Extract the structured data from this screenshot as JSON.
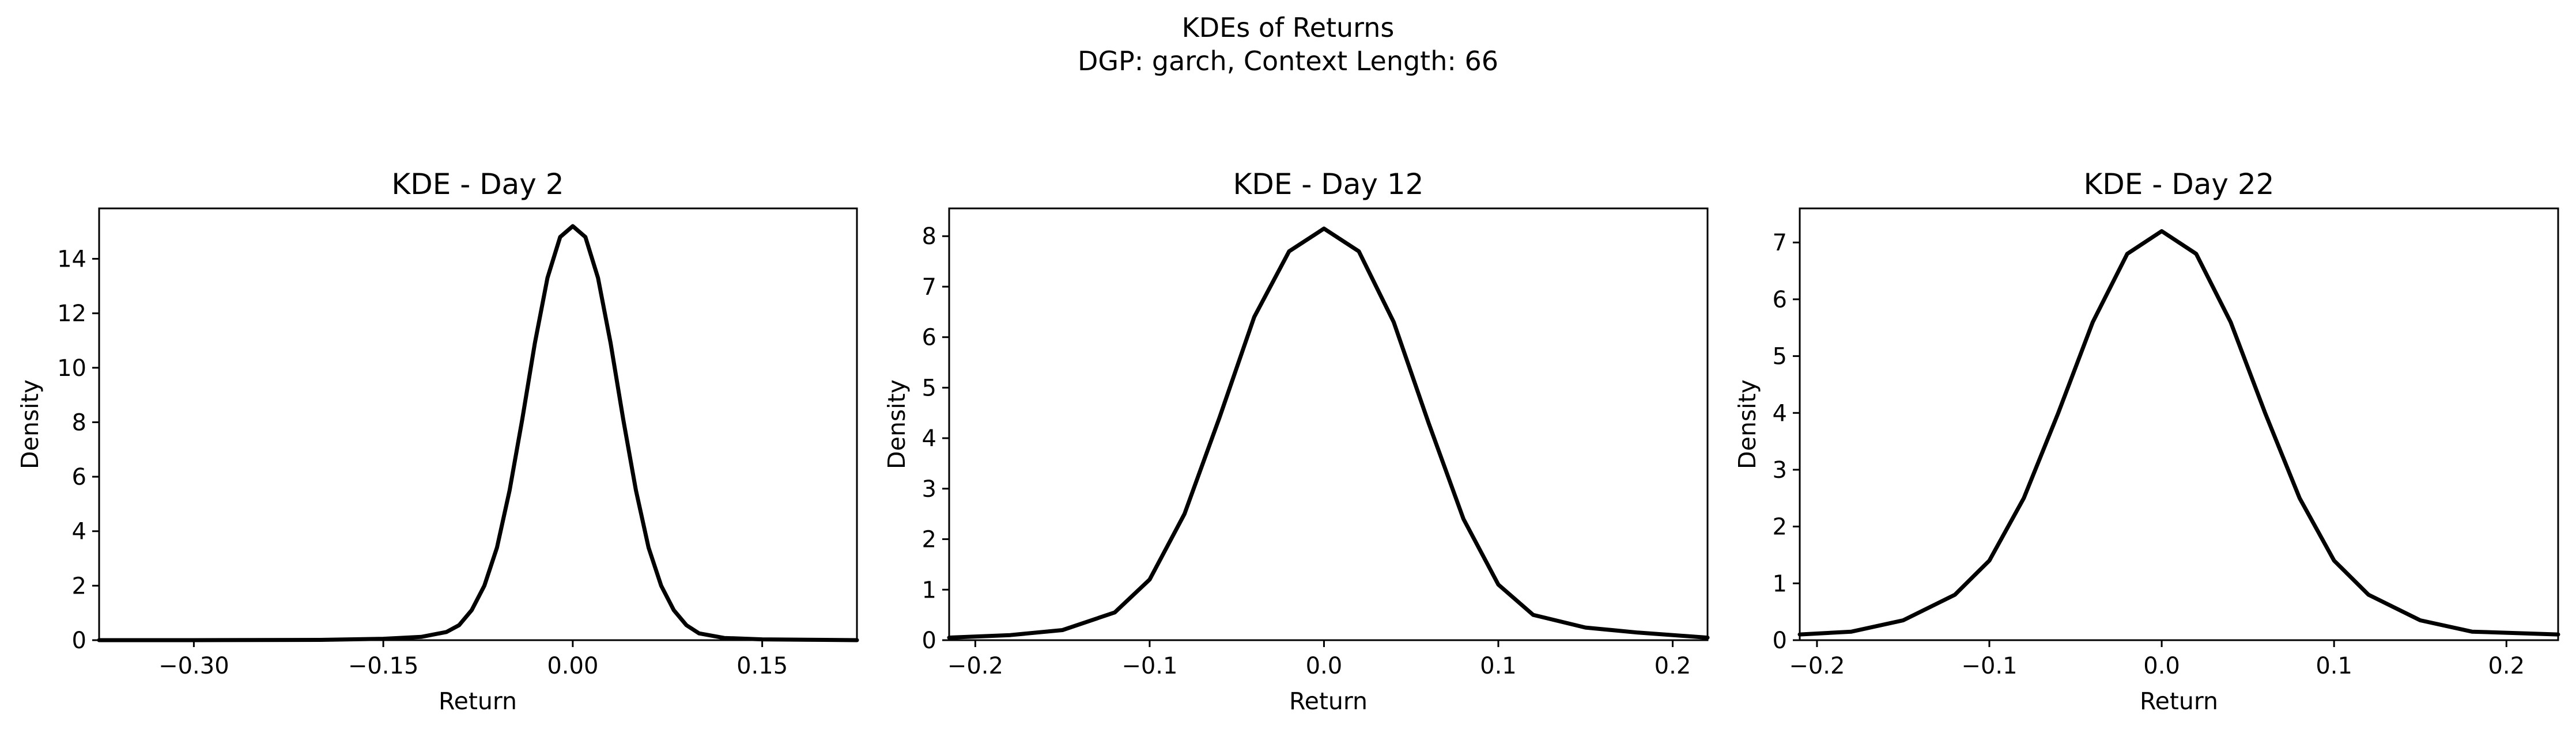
{
  "figure": {
    "title_line1": "KDEs of Returns",
    "title_line2": "DGP: garch, Context Length: 66"
  },
  "chart_data": [
    {
      "type": "line",
      "title": "KDE - Day 2",
      "xlabel": "Return",
      "ylabel": "Density",
      "xlim": [
        -0.375,
        0.225
      ],
      "ylim": [
        0,
        15.85
      ],
      "xticks": [
        -0.3,
        -0.15,
        0.0,
        0.15
      ],
      "xtick_labels": [
        "−0.30",
        "−0.15",
        "0.00",
        "0.15"
      ],
      "yticks": [
        0,
        2,
        4,
        6,
        8,
        10,
        12,
        14
      ],
      "ytick_labels": [
        "0",
        "2",
        "4",
        "6",
        "8",
        "10",
        "12",
        "14"
      ],
      "grid": false,
      "series": [
        {
          "color": "#000000",
          "x": [
            -0.375,
            -0.3,
            -0.2,
            -0.15,
            -0.12,
            -0.1,
            -0.09,
            -0.08,
            -0.07,
            -0.06,
            -0.05,
            -0.04,
            -0.03,
            -0.02,
            -0.01,
            0.0,
            0.01,
            0.02,
            0.03,
            0.04,
            0.05,
            0.06,
            0.07,
            0.08,
            0.09,
            0.1,
            0.12,
            0.15,
            0.2,
            0.225
          ],
          "y": [
            0.0,
            0.0,
            0.01,
            0.05,
            0.12,
            0.3,
            0.55,
            1.1,
            2.0,
            3.4,
            5.5,
            8.1,
            10.9,
            13.3,
            14.8,
            15.2,
            14.8,
            13.3,
            10.9,
            8.1,
            5.5,
            3.4,
            2.0,
            1.1,
            0.55,
            0.25,
            0.08,
            0.03,
            0.01,
            0.0
          ]
        }
      ]
    },
    {
      "type": "line",
      "title": "KDE - Day 12",
      "xlabel": "Return",
      "ylabel": "Density",
      "xlim": [
        -0.215,
        0.22
      ],
      "ylim": [
        0,
        8.55
      ],
      "xticks": [
        -0.2,
        -0.1,
        0.0,
        0.1,
        0.2
      ],
      "xtick_labels": [
        "−0.2",
        "−0.1",
        "0.0",
        "0.1",
        "0.2"
      ],
      "yticks": [
        0,
        1,
        2,
        3,
        4,
        5,
        6,
        7,
        8
      ],
      "ytick_labels": [
        "0",
        "1",
        "2",
        "3",
        "4",
        "5",
        "6",
        "7",
        "8"
      ],
      "grid": false,
      "series": [
        {
          "color": "#000000",
          "x": [
            -0.215,
            -0.18,
            -0.15,
            -0.12,
            -0.1,
            -0.08,
            -0.06,
            -0.04,
            -0.02,
            0.0,
            0.02,
            0.04,
            0.06,
            0.08,
            0.1,
            0.12,
            0.15,
            0.18,
            0.22
          ],
          "y": [
            0.05,
            0.1,
            0.2,
            0.55,
            1.2,
            2.5,
            4.4,
            6.4,
            7.7,
            8.15,
            7.7,
            6.3,
            4.3,
            2.4,
            1.1,
            0.5,
            0.25,
            0.15,
            0.05
          ]
        }
      ]
    },
    {
      "type": "line",
      "title": "KDE - Day 22",
      "xlabel": "Return",
      "ylabel": "Density",
      "xlim": [
        -0.21,
        0.23
      ],
      "ylim": [
        0,
        7.6
      ],
      "xticks": [
        -0.2,
        -0.1,
        0.0,
        0.1,
        0.2
      ],
      "xtick_labels": [
        "−0.2",
        "−0.1",
        "0.0",
        "0.1",
        "0.2"
      ],
      "yticks": [
        0,
        1,
        2,
        3,
        4,
        5,
        6,
        7
      ],
      "ytick_labels": [
        "0",
        "1",
        "2",
        "3",
        "4",
        "5",
        "6",
        "7"
      ],
      "grid": false,
      "series": [
        {
          "color": "#000000",
          "x": [
            -0.21,
            -0.18,
            -0.15,
            -0.12,
            -0.1,
            -0.08,
            -0.06,
            -0.04,
            -0.02,
            0.0,
            0.02,
            0.04,
            0.06,
            0.08,
            0.1,
            0.12,
            0.15,
            0.18,
            0.23
          ],
          "y": [
            0.1,
            0.15,
            0.35,
            0.8,
            1.4,
            2.5,
            4.0,
            5.6,
            6.8,
            7.2,
            6.8,
            5.6,
            4.0,
            2.5,
            1.4,
            0.8,
            0.35,
            0.15,
            0.1
          ]
        }
      ]
    }
  ]
}
